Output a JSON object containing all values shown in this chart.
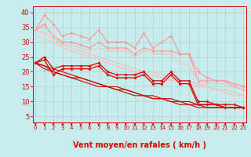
{
  "title": "",
  "xlabel": "Vent moyen/en rafales ( km/h )",
  "ylabel": "",
  "bg_color": "#c8ecec",
  "grid_color": "#aad4d4",
  "x_ticks": [
    0,
    1,
    2,
    3,
    4,
    5,
    6,
    7,
    8,
    9,
    10,
    11,
    12,
    13,
    14,
    15,
    16,
    17,
    18,
    19,
    20,
    21,
    22,
    23
  ],
  "y_ticks": [
    5,
    10,
    15,
    20,
    25,
    30,
    35,
    40
  ],
  "ylim": [
    3,
    42
  ],
  "xlim": [
    -0.3,
    23.3
  ],
  "series": [
    {
      "label": "line1_pink_upper",
      "color": "#ff9999",
      "lw": 0.9,
      "marker": "D",
      "ms": 1.8,
      "y": [
        34,
        39,
        36,
        32,
        33,
        32,
        31,
        34,
        30,
        30,
        30,
        28,
        33,
        28,
        30,
        32,
        26,
        26,
        20,
        18,
        17,
        17,
        16,
        15
      ]
    },
    {
      "label": "line2_pink_mid",
      "color": "#ff9999",
      "lw": 0.8,
      "marker": "D",
      "ms": 1.8,
      "y": [
        34,
        36,
        32,
        30,
        30,
        29,
        28,
        30,
        28,
        28,
        28,
        26,
        28,
        27,
        27,
        27,
        26,
        26,
        17,
        17,
        17,
        17,
        15,
        14
      ]
    },
    {
      "label": "line3_pink_lower",
      "color": "#ffbbbb",
      "lw": 0.8,
      "marker": null,
      "ms": 0,
      "y": [
        34,
        35,
        32,
        29,
        29,
        28,
        27,
        28,
        27,
        27,
        27,
        25,
        27,
        26,
        26,
        26,
        23,
        22,
        17,
        16,
        16,
        16,
        15,
        14
      ]
    },
    {
      "label": "line4_pink_diagonal1",
      "color": "#ffbbbb",
      "lw": 0.9,
      "marker": null,
      "ms": 0,
      "y": [
        34,
        33,
        31,
        29,
        28,
        27,
        26,
        25,
        24,
        23,
        22,
        21,
        20,
        20,
        19,
        18,
        17,
        17,
        16,
        15,
        14,
        14,
        13,
        12
      ]
    },
    {
      "label": "line5_pink_diagonal2",
      "color": "#ffbbbb",
      "lw": 0.8,
      "marker": null,
      "ms": 0,
      "y": [
        32,
        31,
        30,
        28,
        27,
        26,
        25,
        24,
        23,
        22,
        21,
        20,
        19,
        19,
        18,
        17,
        17,
        16,
        15,
        15,
        14,
        13,
        12,
        12
      ]
    },
    {
      "label": "line6_red_upper",
      "color": "#dd0000",
      "lw": 0.9,
      "marker": "D",
      "ms": 1.8,
      "y": [
        23,
        25,
        21,
        22,
        22,
        22,
        22,
        23,
        20,
        19,
        19,
        19,
        20,
        17,
        17,
        20,
        17,
        17,
        10,
        10,
        9,
        9,
        9,
        8
      ]
    },
    {
      "label": "line7_red_lower",
      "color": "#dd0000",
      "lw": 0.9,
      "marker": "D",
      "ms": 1.8,
      "y": [
        23,
        24,
        19,
        21,
        21,
        21,
        21,
        22,
        19,
        18,
        18,
        18,
        19,
        16,
        16,
        19,
        16,
        16,
        9,
        9,
        9,
        8,
        8,
        8
      ]
    },
    {
      "label": "line8_red_diag1",
      "color": "#cc0000",
      "lw": 0.8,
      "marker": null,
      "ms": 0,
      "y": [
        23,
        22,
        21,
        20,
        19,
        18,
        17,
        16,
        15,
        15,
        14,
        13,
        12,
        12,
        11,
        11,
        10,
        10,
        9,
        9,
        9,
        8,
        8,
        8
      ]
    },
    {
      "label": "line9_red_diag2",
      "color": "#cc0000",
      "lw": 0.8,
      "marker": null,
      "ms": 0,
      "y": [
        23,
        22,
        20,
        19,
        18,
        18,
        17,
        16,
        15,
        14,
        14,
        13,
        12,
        11,
        11,
        10,
        10,
        9,
        9,
        8,
        8,
        8,
        8,
        8
      ]
    },
    {
      "label": "line10_red_diag3",
      "color": "#cc0000",
      "lw": 0.8,
      "marker": null,
      "ms": 0,
      "y": [
        23,
        21,
        20,
        19,
        18,
        17,
        16,
        15,
        15,
        14,
        13,
        12,
        12,
        11,
        11,
        10,
        9,
        9,
        8,
        8,
        8,
        8,
        8,
        8
      ]
    }
  ],
  "arrow_color": "#dd0000",
  "xlabel_color": "#dd0000",
  "tick_color": "#dd0000",
  "xlabel_fontsize": 7,
  "ytick_fontsize": 6,
  "xtick_fontsize": 5
}
